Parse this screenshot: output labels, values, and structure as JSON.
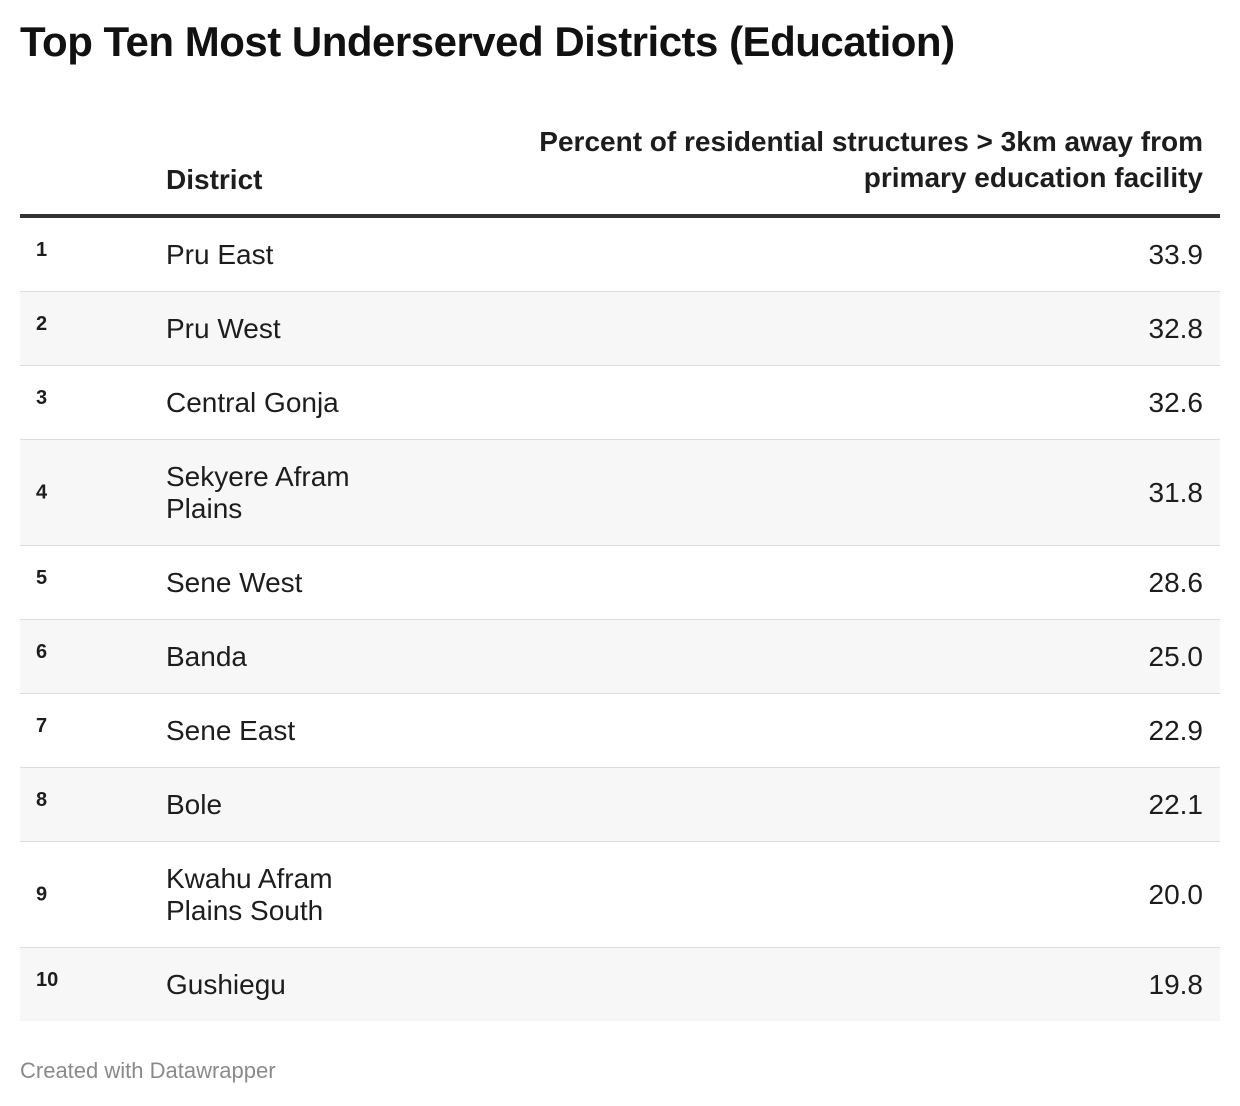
{
  "title": "Top Ten Most Underserved Districts (Education)",
  "chart_data": {
    "type": "table",
    "title": "Top Ten Most Underserved Districts (Education)",
    "columns": [
      "",
      "District",
      "Percent of residential structures > 3km away from primary education facility"
    ],
    "rows": [
      {
        "rank": "1",
        "district": "Pru East",
        "value": "33.9"
      },
      {
        "rank": "2",
        "district": "Pru West",
        "value": "32.8"
      },
      {
        "rank": "3",
        "district": "Central Gonja",
        "value": "32.6"
      },
      {
        "rank": "4",
        "district": "Sekyere Afram Plains",
        "value": "31.8"
      },
      {
        "rank": "5",
        "district": "Sene West",
        "value": "28.6"
      },
      {
        "rank": "6",
        "district": "Banda",
        "value": "25.0"
      },
      {
        "rank": "7",
        "district": "Sene East",
        "value": "22.9"
      },
      {
        "rank": "8",
        "district": "Bole",
        "value": "22.1"
      },
      {
        "rank": "9",
        "district": "Kwahu Afram Plains South",
        "value": "20.0"
      },
      {
        "rank": "10",
        "district": "Gushiegu",
        "value": "19.8"
      }
    ]
  },
  "footer": "Created with Datawrapper"
}
